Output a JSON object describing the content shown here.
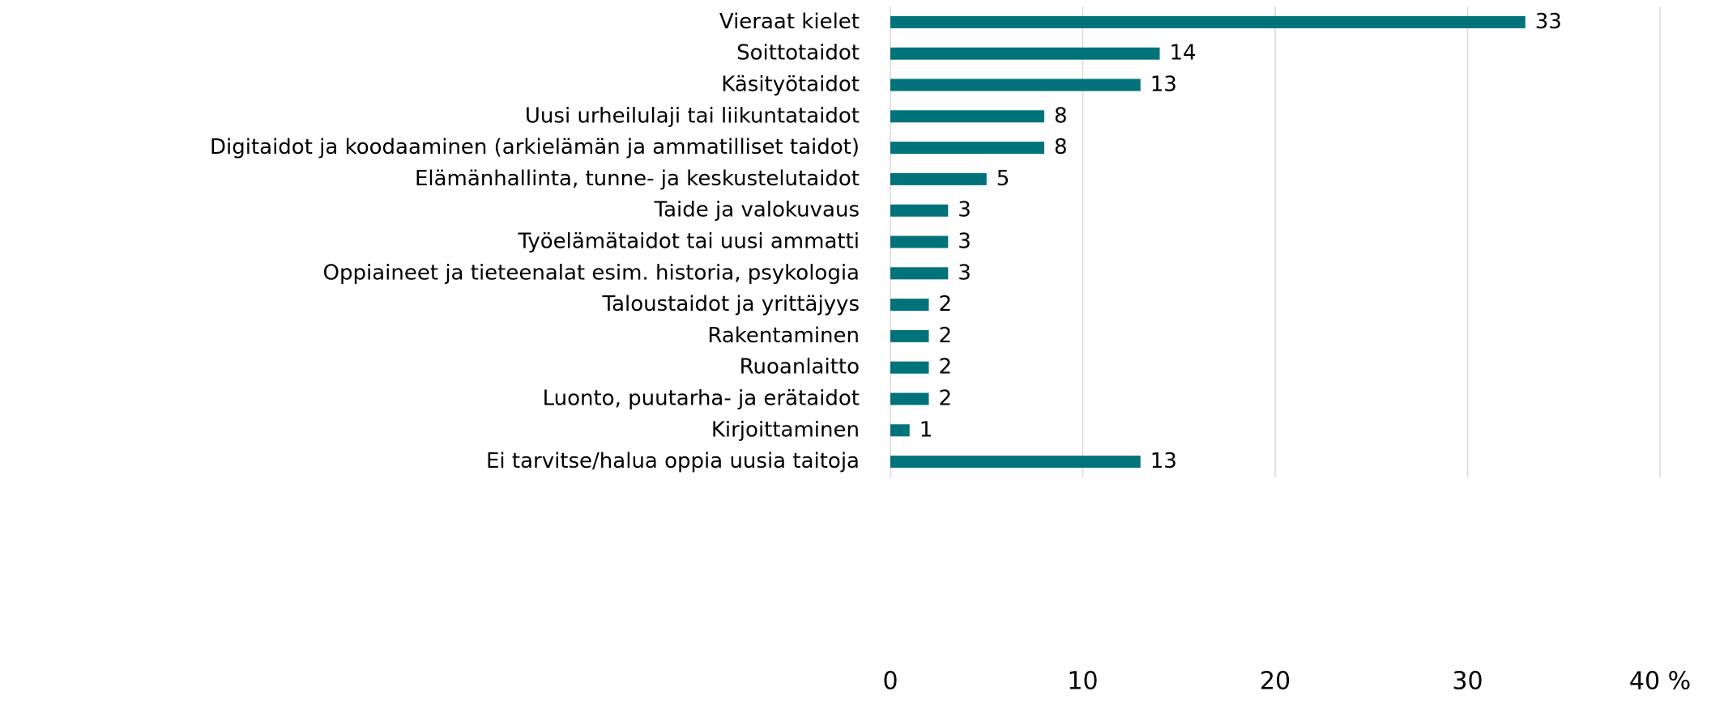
{
  "chart_data": {
    "type": "bar",
    "orientation": "horizontal",
    "categories": [
      "Vieraat kielet",
      "Soittotaidot",
      "Käsityötaidot",
      "Uusi urheilulaji tai liikuntataidot",
      "Digitaidot ja koodaaminen (arkielämän ja ammatilliset taidot)",
      "Elämänhallinta, tunne- ja keskustelutaidot",
      "Taide ja valokuvaus",
      "Työelämätaidot tai uusi ammatti",
      "Oppiaineet ja tieteenalat esim. historia, psykologia",
      "Taloustaidot ja yrittäjyys",
      "Rakentaminen",
      "Ruoanlaitto",
      "Luonto, puutarha- ja erätaidot",
      "Kirjoittaminen",
      "Ei tarvitse/halua oppia uusia taitoja"
    ],
    "values": [
      33,
      14,
      13,
      8,
      8,
      5,
      3,
      3,
      3,
      2,
      2,
      2,
      2,
      1,
      13
    ],
    "color": "#00737a",
    "xlim": [
      0,
      40
    ],
    "xticks": [
      0,
      10,
      20,
      30,
      {
        "value": 40,
        "label": "40 %"
      }
    ],
    "grid": true
  }
}
